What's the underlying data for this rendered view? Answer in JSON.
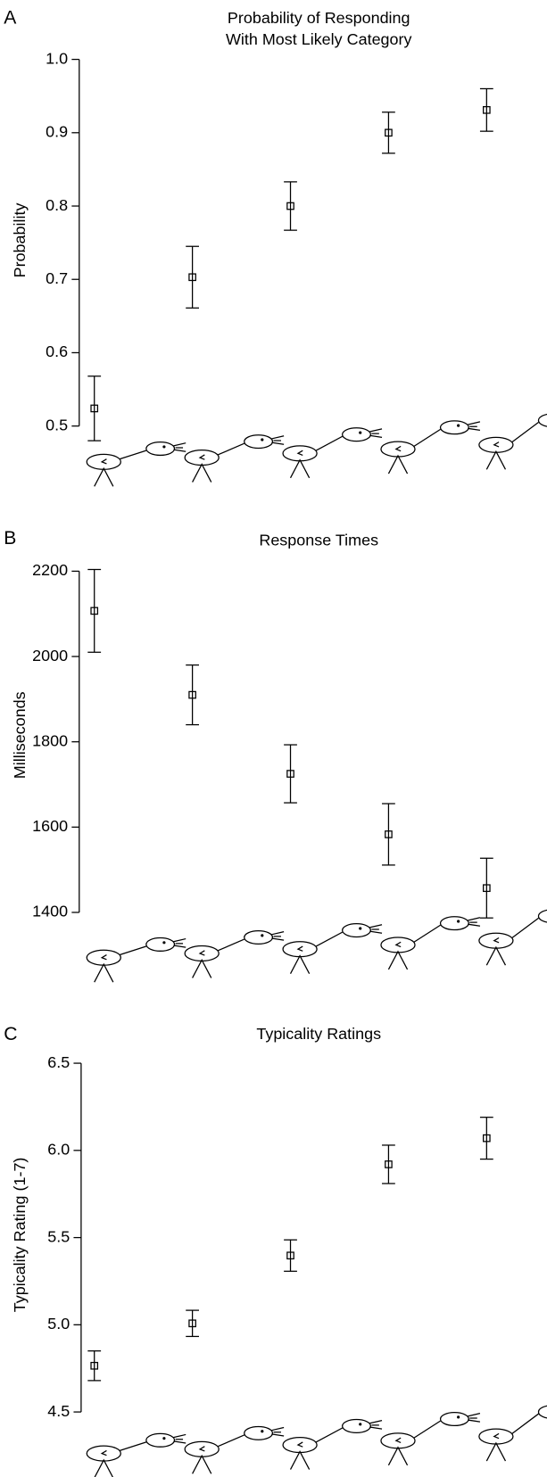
{
  "chart_data": [
    {
      "type": "errorbar",
      "label": "A",
      "title": [
        "Probability of Responding",
        "With Most Likely Category"
      ],
      "ylabel": "Probability",
      "categories": [
        null,
        null,
        null,
        null,
        null
      ],
      "values": [
        0.524,
        0.703,
        0.8,
        0.9,
        0.931
      ],
      "errors": [
        0.044,
        0.042,
        0.033,
        0.028,
        0.029
      ],
      "ylim": [
        0.5,
        1
      ],
      "yticks": [
        0.5,
        0.6,
        0.7,
        0.8,
        0.9,
        {
          "value": 1,
          "label": "1.0"
        }
      ],
      "color": "#000000"
    },
    {
      "type": "errorbar",
      "label": "B",
      "title": [
        "Response Times"
      ],
      "ylabel": "Milliseconds",
      "categories": [
        null,
        null,
        null,
        null,
        null
      ],
      "values": [
        2107,
        1910,
        1725,
        1583,
        1457
      ],
      "errors": [
        97,
        70,
        68,
        72,
        70
      ],
      "ylim": [
        1400,
        2200
      ],
      "yticks": [
        1400,
        1600,
        1800,
        2000,
        2200
      ],
      "color": "#000000"
    },
    {
      "type": "errorbar",
      "label": "C",
      "title": [
        "Typicality Ratings"
      ],
      "ylabel": "Typicality Rating (1-7)",
      "categories": [
        null,
        null,
        null,
        null,
        null
      ],
      "values": [
        4.765,
        5.008,
        5.397,
        5.92,
        6.07
      ],
      "errors": [
        0.085,
        0.075,
        0.09,
        0.11,
        0.12
      ],
      "ylim": [
        4.5,
        6.5
      ],
      "yticks": [
        4.5,
        {
          "value": 5,
          "label": "5.0"
        },
        5.5,
        {
          "value": 6,
          "label": "6.0"
        },
        6.5
      ],
      "color": "#000000"
    }
  ]
}
